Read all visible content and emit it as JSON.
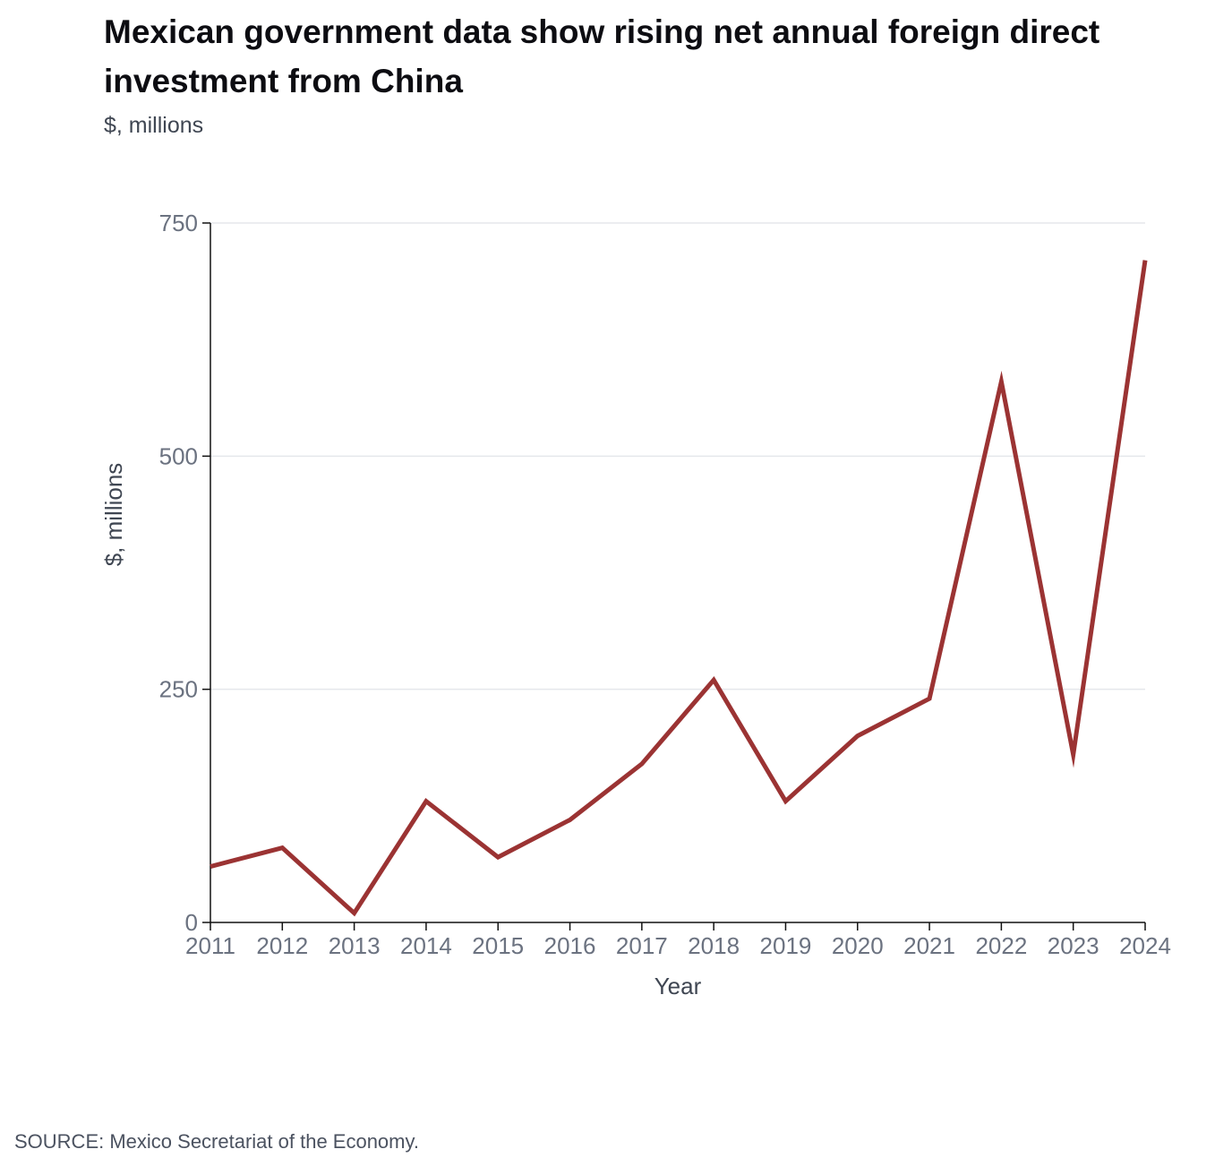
{
  "header": {
    "title": "Mexican government data show rising net annual foreign direct investment from China",
    "subtitle": "$, millions"
  },
  "footer": {
    "source": "SOURCE: Mexico Secretariat of the Economy."
  },
  "colors": {
    "line": "#9b3333",
    "grid": "#e5e7eb",
    "axis": "#111111",
    "tick_text": "#6b7280"
  },
  "chart_data": {
    "type": "line",
    "title": "Mexican government data show rising net annual foreign direct investment from China",
    "subtitle": "$, millions",
    "xlabel": "Year",
    "ylabel": "$, millions",
    "ylim": [
      0,
      750
    ],
    "yticks": [
      0,
      250,
      500,
      750
    ],
    "grid": true,
    "x": [
      "2011",
      "2012",
      "2013",
      "2014",
      "2015",
      "2016",
      "2017",
      "2018",
      "2019",
      "2020",
      "2021",
      "2022",
      "2023",
      "2024"
    ],
    "series": [
      {
        "name": "Net annual FDI from China",
        "values": [
          60,
          80,
          10,
          130,
          70,
          110,
          170,
          260,
          130,
          200,
          240,
          580,
          180,
          710
        ]
      }
    ]
  }
}
